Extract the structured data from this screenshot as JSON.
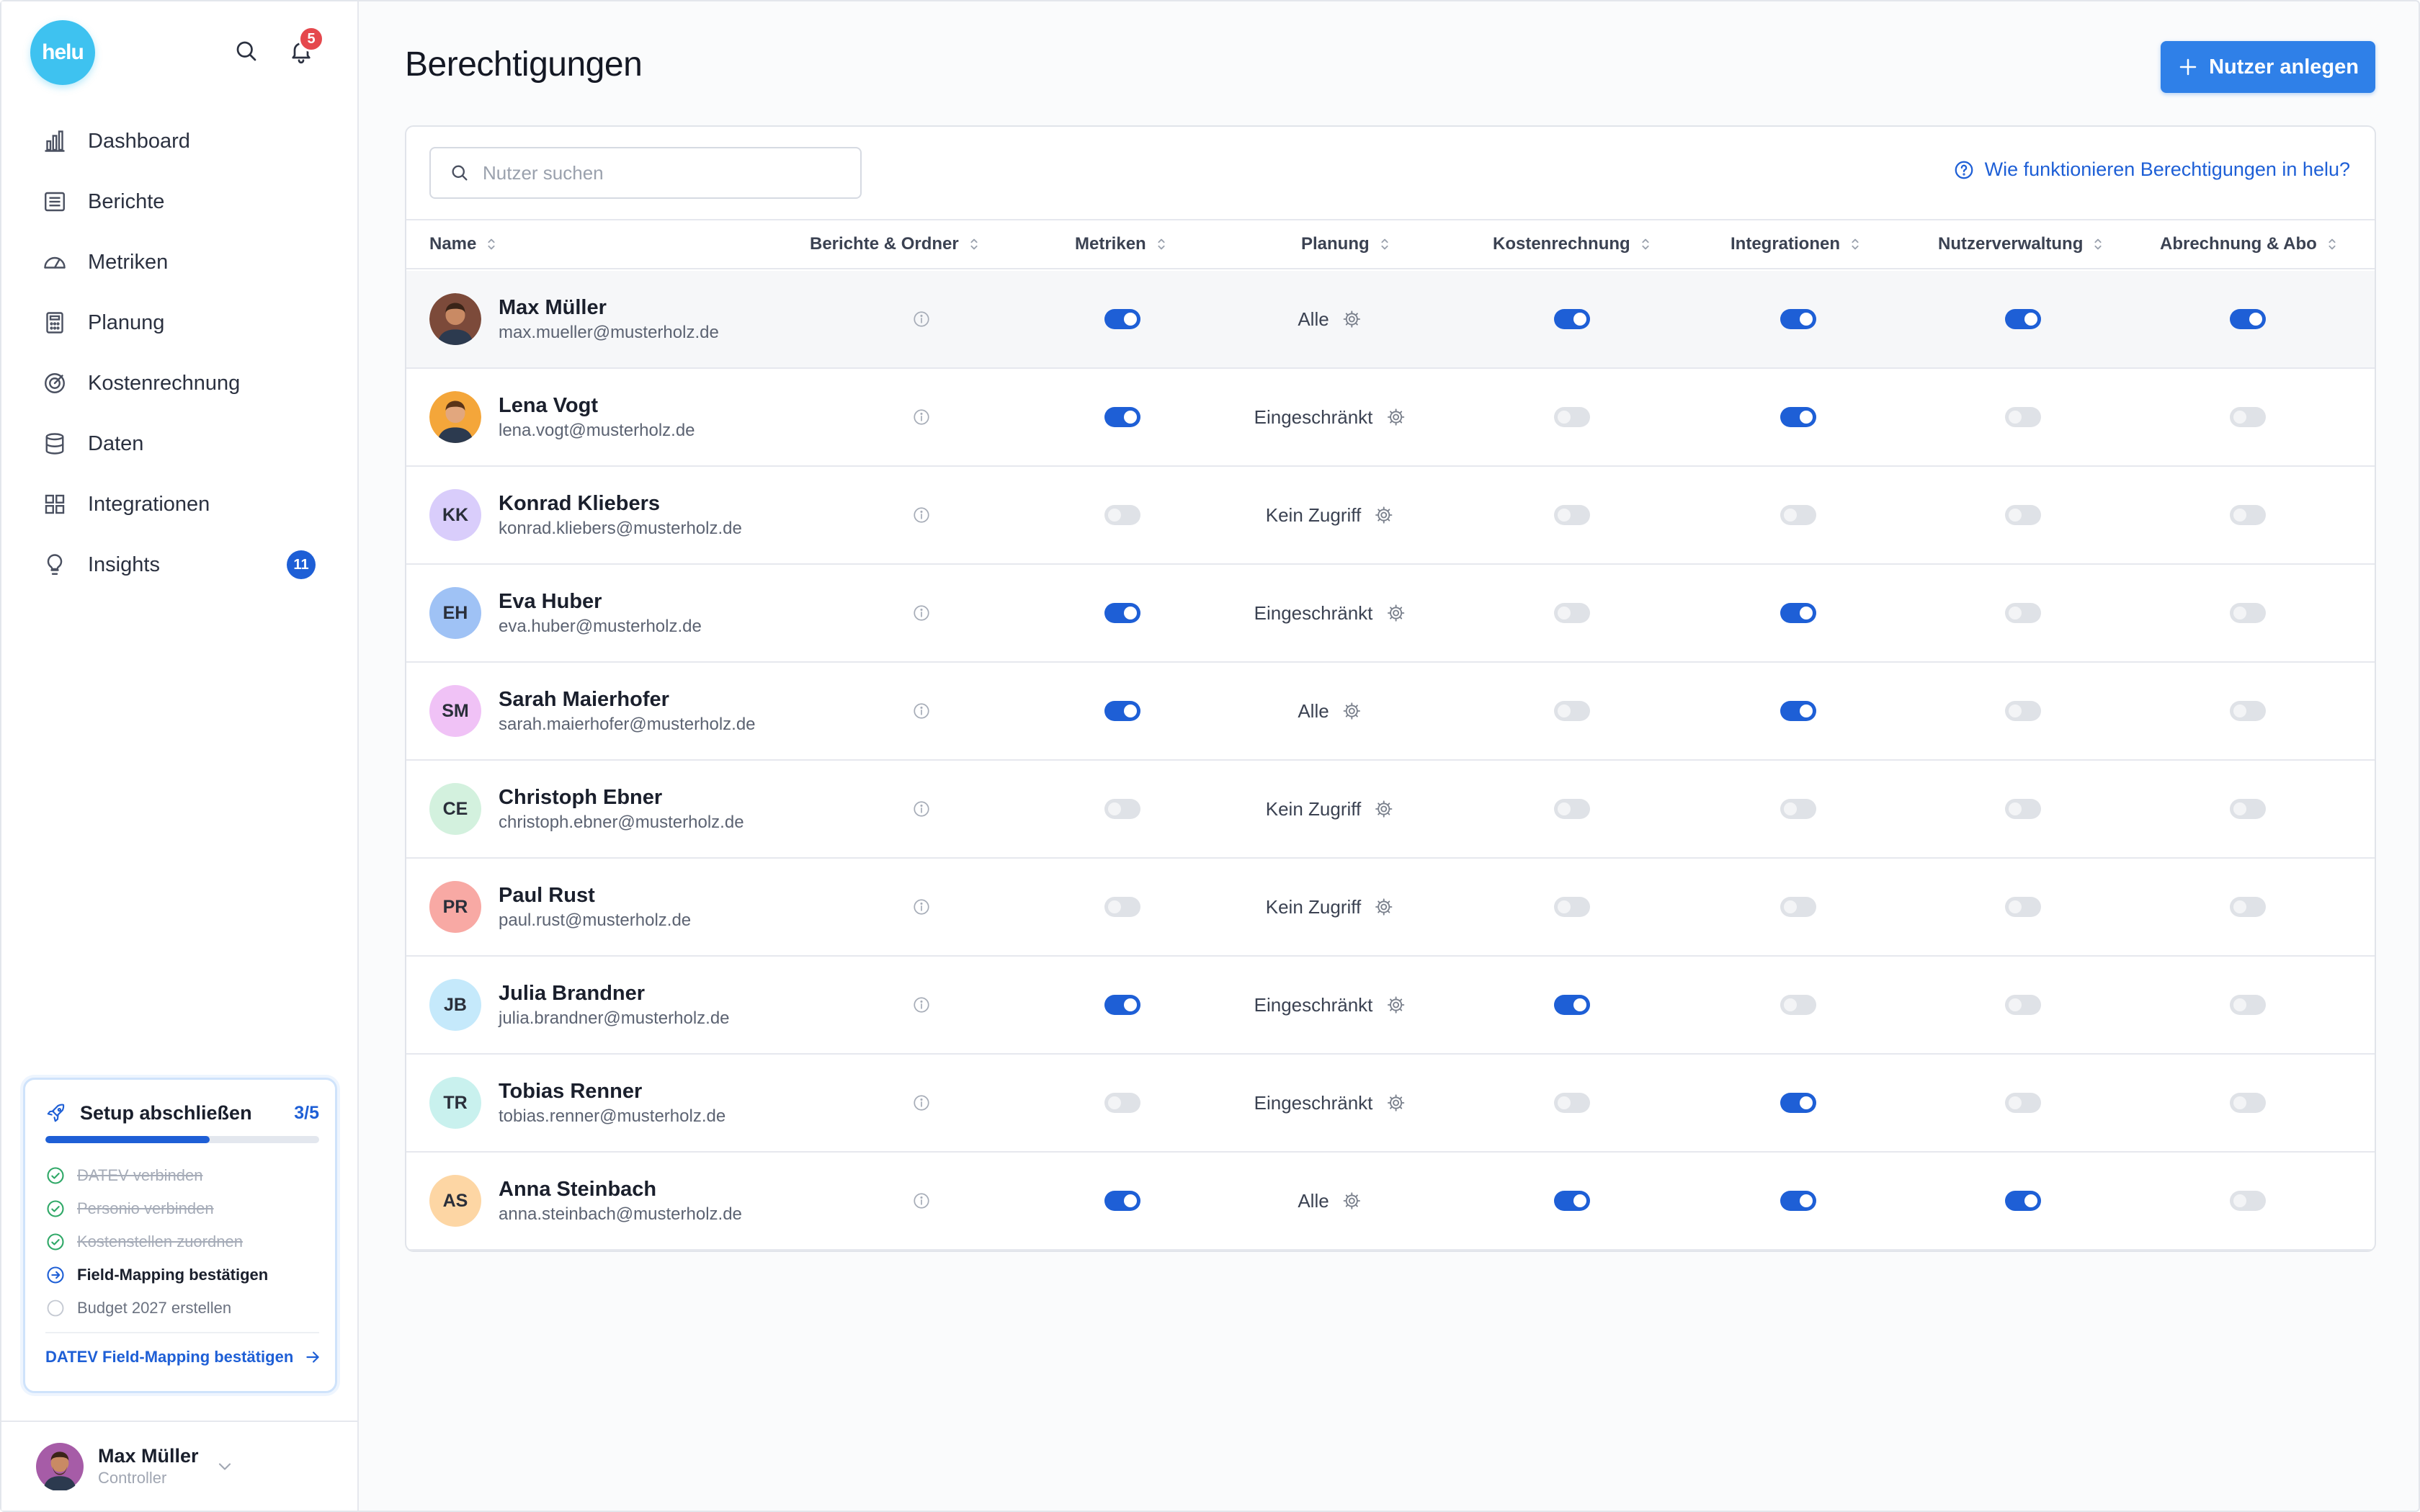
{
  "app": {
    "logo_text": "helu",
    "notification_count": "5"
  },
  "sidebar": {
    "items": [
      {
        "label": "Dashboard",
        "icon": "bar-chart-icon"
      },
      {
        "label": "Berichte",
        "icon": "report-icon"
      },
      {
        "label": "Metriken",
        "icon": "gauge-icon"
      },
      {
        "label": "Planung",
        "icon": "calculator-icon"
      },
      {
        "label": "Kostenrechnung",
        "icon": "target-icon"
      },
      {
        "label": "Daten",
        "icon": "database-icon"
      },
      {
        "label": "Integrationen",
        "icon": "grid-icon"
      },
      {
        "label": "Insights",
        "icon": "lightbulb-icon",
        "badge": "11"
      }
    ]
  },
  "setup": {
    "title": "Setup abschließen",
    "count": "3/5",
    "progress": 0.6,
    "steps": [
      {
        "label": "DATEV verbinden",
        "state": "done"
      },
      {
        "label": "Personio verbinden",
        "state": "done"
      },
      {
        "label": "Kostenstellen zuordnen",
        "state": "done"
      },
      {
        "label": "Field-Mapping bestätigen",
        "state": "active"
      },
      {
        "label": "Budget 2027 erstellen",
        "state": "todo"
      }
    ],
    "link_label": "DATEV Field-Mapping bestätigen"
  },
  "profile": {
    "name": "Max Müller",
    "role": "Controller"
  },
  "page": {
    "title": "Berechtigungen",
    "primary_button": "Nutzer anlegen",
    "search_placeholder": "Nutzer suchen",
    "help_link": "Wie funktionieren Berechtigungen in helu?"
  },
  "table": {
    "columns": [
      "Name",
      "Berichte & Ordner",
      "Metriken",
      "Planung",
      "Kostenrechnung",
      "Integrationen",
      "Nutzerverwaltung",
      "Abrechnung & Abo"
    ],
    "rows": [
      {
        "name": "Max Müller",
        "email": "max.mueller@musterholz.de",
        "initials": "",
        "avatar_color": "#7c4a3a",
        "photo": true,
        "metriken": true,
        "planung": "Alle",
        "kostenrechnung": true,
        "integrationen": true,
        "nutzerverwaltung": true,
        "abrechnung": true
      },
      {
        "name": "Lena Vogt",
        "email": "lena.vogt@musterholz.de",
        "initials": "",
        "avatar_color": "#f4a63a",
        "photo": true,
        "metriken": true,
        "planung": "Eingeschränkt",
        "kostenrechnung": false,
        "integrationen": true,
        "nutzerverwaltung": false,
        "abrechnung": false
      },
      {
        "name": "Konrad Kliebers",
        "email": "konrad.kliebers@musterholz.de",
        "initials": "KK",
        "avatar_color": "#d9cdfb",
        "photo": false,
        "metriken": false,
        "planung": "Kein Zugriff",
        "kostenrechnung": false,
        "integrationen": false,
        "nutzerverwaltung": false,
        "abrechnung": false
      },
      {
        "name": "Eva Huber",
        "email": "eva.huber@musterholz.de",
        "initials": "EH",
        "avatar_color": "#9fc2f5",
        "photo": false,
        "metriken": true,
        "planung": "Eingeschränkt",
        "kostenrechnung": false,
        "integrationen": true,
        "nutzerverwaltung": false,
        "abrechnung": false
      },
      {
        "name": "Sarah Maierhofer",
        "email": "sarah.maierhofer@musterholz.de",
        "initials": "SM",
        "avatar_color": "#f0c2f6",
        "photo": false,
        "metriken": true,
        "planung": "Alle",
        "kostenrechnung": false,
        "integrationen": true,
        "nutzerverwaltung": false,
        "abrechnung": false
      },
      {
        "name": "Christoph Ebner",
        "email": "christoph.ebner@musterholz.de",
        "initials": "CE",
        "avatar_color": "#d3f1de",
        "photo": false,
        "metriken": false,
        "planung": "Kein Zugriff",
        "kostenrechnung": false,
        "integrationen": false,
        "nutzerverwaltung": false,
        "abrechnung": false
      },
      {
        "name": "Paul Rust",
        "email": "paul.rust@musterholz.de",
        "initials": "PR",
        "avatar_color": "#f8a9a4",
        "photo": false,
        "metriken": false,
        "planung": "Kein Zugriff",
        "kostenrechnung": false,
        "integrationen": false,
        "nutzerverwaltung": false,
        "abrechnung": false
      },
      {
        "name": "Julia Brandner",
        "email": "julia.brandner@musterholz.de",
        "initials": "JB",
        "avatar_color": "#c5e9fb",
        "photo": false,
        "metriken": true,
        "planung": "Eingeschränkt",
        "kostenrechnung": true,
        "integrationen": false,
        "nutzerverwaltung": false,
        "abrechnung": false
      },
      {
        "name": "Tobias Renner",
        "email": "tobias.renner@musterholz.de",
        "initials": "TR",
        "avatar_color": "#c9f1ee",
        "photo": false,
        "metriken": false,
        "planung": "Eingeschränkt",
        "kostenrechnung": false,
        "integrationen": true,
        "nutzerverwaltung": false,
        "abrechnung": false
      },
      {
        "name": "Anna Steinbach",
        "email": "anna.steinbach@musterholz.de",
        "initials": "AS",
        "avatar_color": "#fdd6a4",
        "photo": false,
        "metriken": true,
        "planung": "Alle",
        "kostenrechnung": true,
        "integrationen": true,
        "nutzerverwaltung": true,
        "abrechnung": false
      }
    ]
  },
  "colors": {
    "accent": "#1e5fd6",
    "button": "#2f80e8",
    "logo": "#3ec2f0",
    "badge_red": "#e5484d"
  }
}
